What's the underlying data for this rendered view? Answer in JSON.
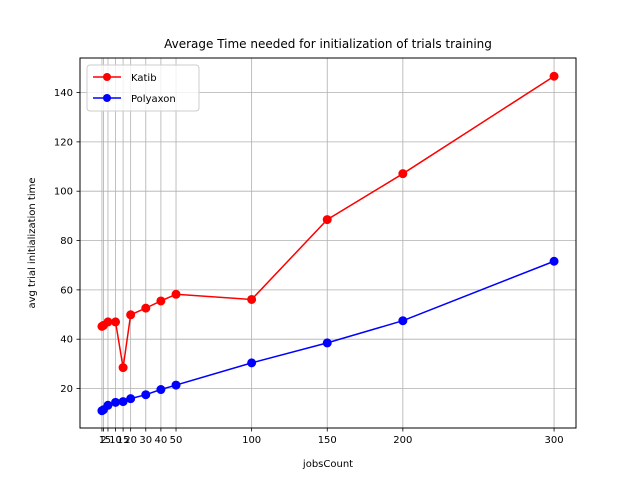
{
  "chart_data": {
    "type": "line",
    "title": "Average Time needed for initialization of  trials training",
    "xlabel": "jobsCount",
    "ylabel": "avg trial initialization time",
    "xlim": [
      -13.5,
      314.5
    ],
    "ylim": [
      4,
      154
    ],
    "x_ticks": [
      1,
      2,
      5,
      10,
      15,
      20,
      30,
      40,
      50,
      100,
      150,
      200,
      300
    ],
    "x_tick_labels": [
      "1",
      "2",
      "5",
      "10",
      "15",
      "20",
      "30",
      "40",
      "50",
      "100",
      "150",
      "200",
      "300"
    ],
    "y_ticks": [
      20,
      40,
      60,
      80,
      100,
      120,
      140
    ],
    "y_tick_labels": [
      "20",
      "40",
      "60",
      "80",
      "100",
      "120",
      "140"
    ],
    "grid": true,
    "legend_position": "top-left",
    "x": [
      1,
      2,
      5,
      10,
      15,
      20,
      30,
      40,
      50,
      100,
      150,
      200,
      300
    ],
    "series": [
      {
        "name": "Katib",
        "color": "#ff0000",
        "values": [
          45.2,
          45.6,
          47.0,
          47.0,
          28.5,
          49.9,
          52.6,
          55.5,
          58.2,
          56.1,
          88.5,
          107.1,
          146.6
        ]
      },
      {
        "name": "Polyaxon",
        "color": "#0000ff",
        "values": [
          11.0,
          11.4,
          13.2,
          14.4,
          14.7,
          15.9,
          17.5,
          19.6,
          21.4,
          30.4,
          38.5,
          47.5,
          71.6
        ]
      }
    ]
  }
}
